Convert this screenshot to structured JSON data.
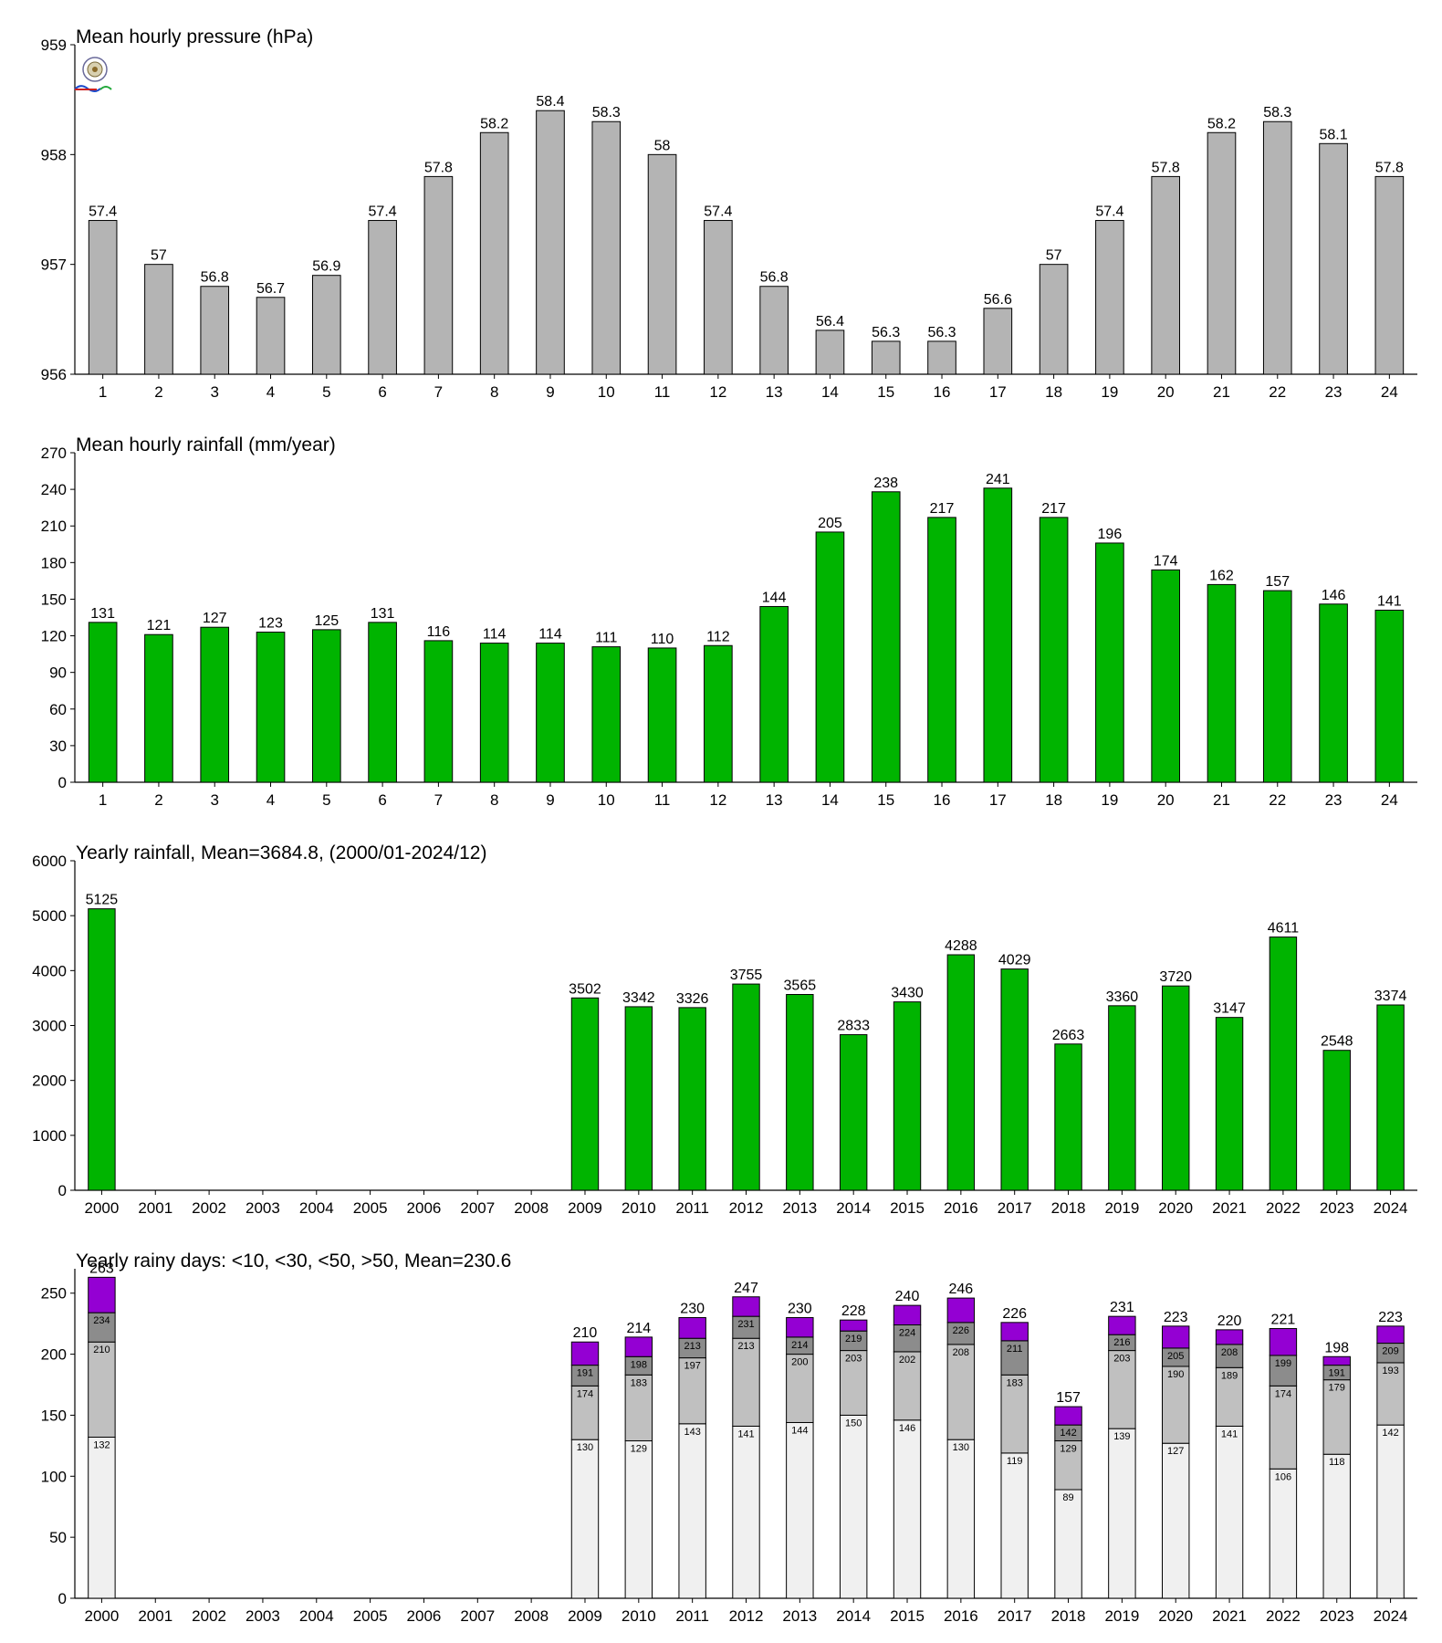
{
  "chart_data": [
    {
      "type": "bar",
      "title": "Mean hourly pressure (hPa)",
      "xlabel": "",
      "ylabel": "",
      "categories": [
        "1",
        "2",
        "3",
        "4",
        "5",
        "6",
        "7",
        "8",
        "9",
        "10",
        "11",
        "12",
        "13",
        "14",
        "15",
        "16",
        "17",
        "18",
        "19",
        "20",
        "21",
        "22",
        "23",
        "24"
      ],
      "values": [
        957.4,
        957.0,
        956.8,
        956.7,
        956.9,
        957.4,
        957.8,
        958.2,
        958.4,
        958.3,
        958.0,
        957.4,
        956.8,
        956.4,
        956.3,
        956.3,
        956.6,
        957.0,
        957.4,
        957.8,
        958.2,
        958.3,
        958.1,
        957.8
      ],
      "value_labels": [
        "57.4",
        "57",
        "56.8",
        "56.7",
        "56.9",
        "57.4",
        "57.8",
        "58.2",
        "58.4",
        "58.3",
        "58",
        "57.4",
        "56.8",
        "56.4",
        "56.3",
        "56.3",
        "56.6",
        "57",
        "57.4",
        "57.8",
        "58.2",
        "58.3",
        "58.1",
        "57.8"
      ],
      "ylim": [
        956,
        959
      ],
      "yticks": [
        "956",
        "957",
        "958",
        "959"
      ],
      "bar_color": "#b4b4b4",
      "grid": false
    },
    {
      "type": "bar",
      "title": "Mean hourly rainfall (mm/year)",
      "xlabel": "",
      "ylabel": "",
      "categories": [
        "1",
        "2",
        "3",
        "4",
        "5",
        "6",
        "7",
        "8",
        "9",
        "10",
        "11",
        "12",
        "13",
        "14",
        "15",
        "16",
        "17",
        "18",
        "19",
        "20",
        "21",
        "22",
        "23",
        "24"
      ],
      "values": [
        131,
        121,
        127,
        123,
        125,
        131,
        116,
        114,
        114,
        111,
        110,
        112,
        144,
        205,
        238,
        217,
        241,
        217,
        196,
        174,
        162,
        157,
        146,
        141
      ],
      "value_labels": [
        "131",
        "121",
        "127",
        "123",
        "125",
        "131",
        "116",
        "114",
        "114",
        "111",
        "110",
        "112",
        "144",
        "205",
        "238",
        "217",
        "241",
        "217",
        "196",
        "174",
        "162",
        "157",
        "146",
        "141"
      ],
      "ylim": [
        0,
        270
      ],
      "yticks": [
        "0",
        "30",
        "60",
        "90",
        "120",
        "150",
        "180",
        "210",
        "240",
        "270"
      ],
      "bar_color": "#00b400",
      "grid": false
    },
    {
      "type": "bar",
      "title": "Yearly rainfall, Mean=3684.8, (2000/01-2024/12)",
      "xlabel": "",
      "ylabel": "",
      "categories": [
        "2000",
        "2001",
        "2002",
        "2003",
        "2004",
        "2005",
        "2006",
        "2007",
        "2008",
        "2009",
        "2010",
        "2011",
        "2012",
        "2013",
        "2014",
        "2015",
        "2016",
        "2017",
        "2018",
        "2019",
        "2020",
        "2021",
        "2022",
        "2023",
        "2024"
      ],
      "values": [
        5125,
        null,
        null,
        null,
        null,
        null,
        null,
        null,
        null,
        3502,
        3342,
        3326,
        3755,
        3565,
        2833,
        3430,
        4288,
        4029,
        2663,
        3360,
        3720,
        3147,
        4611,
        2548,
        3374
      ],
      "value_labels": [
        "5125",
        "",
        "",
        "",
        "",
        "",
        "",
        "",
        "",
        "3502",
        "3342",
        "3326",
        "3755",
        "3565",
        "2833",
        "3430",
        "4288",
        "4029",
        "2663",
        "3360",
        "3720",
        "3147",
        "4611",
        "2548",
        "3374"
      ],
      "ylim": [
        0,
        6000
      ],
      "yticks": [
        "0",
        "1000",
        "2000",
        "3000",
        "4000",
        "5000",
        "6000"
      ],
      "bar_color": "#00b400",
      "grid": false
    },
    {
      "type": "bar",
      "stacked": true,
      "title": "Yearly rainy days: <10, <30, <50, >50, Mean=230.6",
      "xlabel": "",
      "ylabel": "",
      "categories": [
        "2000",
        "2001",
        "2002",
        "2003",
        "2004",
        "2005",
        "2006",
        "2007",
        "2008",
        "2009",
        "2010",
        "2011",
        "2012",
        "2013",
        "2014",
        "2015",
        "2016",
        "2017",
        "2018",
        "2019",
        "2020",
        "2021",
        "2022",
        "2023",
        "2024"
      ],
      "cumulative": [
        [
          132,
          210,
          234,
          263
        ],
        null,
        null,
        null,
        null,
        null,
        null,
        null,
        null,
        [
          130,
          174,
          191,
          210
        ],
        [
          129,
          183,
          198,
          214
        ],
        [
          143,
          197,
          213,
          230
        ],
        [
          141,
          213,
          231,
          247
        ],
        [
          144,
          200,
          214,
          230
        ],
        [
          150,
          203,
          219,
          228
        ],
        [
          146,
          202,
          224,
          240
        ],
        [
          130,
          208,
          226,
          246
        ],
        [
          119,
          183,
          211,
          226
        ],
        [
          89,
          129,
          142,
          157
        ],
        [
          139,
          203,
          216,
          231
        ],
        [
          127,
          190,
          205,
          223
        ],
        [
          141,
          189,
          208,
          220
        ],
        [
          106,
          174,
          199,
          221
        ],
        [
          118,
          179,
          191,
          198
        ],
        [
          142,
          193,
          209,
          223
        ]
      ],
      "ylim": [
        0,
        270
      ],
      "yticks": [
        "0",
        "50",
        "100",
        "150",
        "200",
        "250"
      ],
      "segment_colors": [
        "#f0f0f0",
        "#c0c0c0",
        "#8c8c8c",
        "#9400d3"
      ],
      "grid": false
    }
  ]
}
